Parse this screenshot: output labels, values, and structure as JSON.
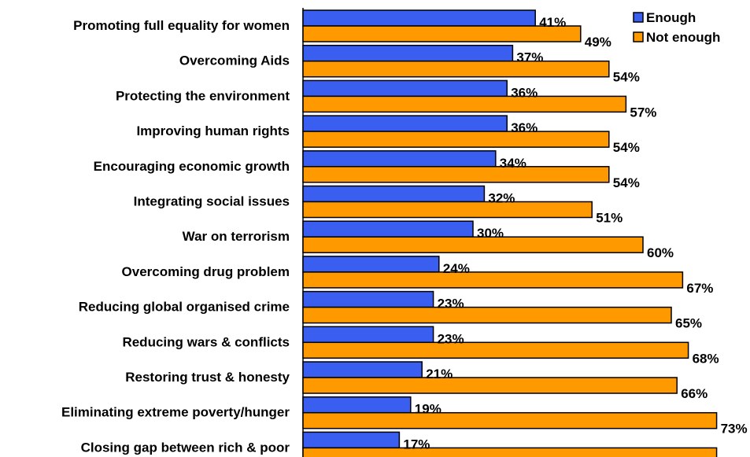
{
  "chart_data": {
    "type": "bar",
    "orientation": "horizontal",
    "categories": [
      "Promoting full equality for women",
      "Overcoming Aids",
      "Protecting the environment",
      "Improving human rights",
      "Encouraging economic growth",
      "Integrating social issues",
      "War on terrorism",
      "Overcoming drug problem",
      "Reducing global organised crime",
      "Reducing wars & conflicts",
      "Restoring trust & honesty",
      "Eliminating extreme poverty/hunger",
      "Closing gap between rich & poor"
    ],
    "series": [
      {
        "name": "Enough",
        "color": "#3a5ef0",
        "values": [
          41,
          37,
          36,
          36,
          34,
          32,
          30,
          24,
          23,
          23,
          21,
          19,
          17
        ]
      },
      {
        "name": "Not enough",
        "color": "#ff9900",
        "values": [
          49,
          54,
          57,
          54,
          54,
          51,
          60,
          67,
          65,
          68,
          66,
          73,
          73
        ]
      }
    ],
    "value_suffix": "%",
    "xlim": [
      0,
      100
    ],
    "grid": false,
    "legend_position": "top-right",
    "title": "",
    "xlabel": "",
    "ylabel": ""
  }
}
